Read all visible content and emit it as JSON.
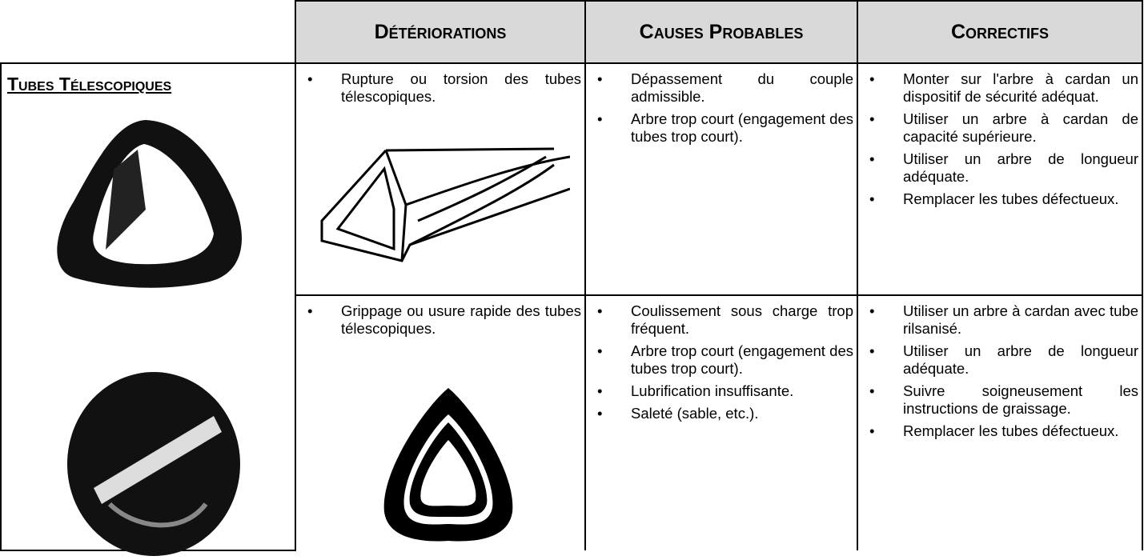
{
  "header": {
    "columns": [
      "Détériorations",
      "Causes Probables",
      "Correctifs"
    ]
  },
  "section": {
    "title": "Tubes Télescopiques"
  },
  "rows": [
    {
      "deteriorations": [
        "Rupture ou torsion des tubes télescopiques."
      ],
      "causes": [
        "Dépassement du couple admissible.",
        "Arbre trop court (engagement des tubes trop court)."
      ],
      "correctifs": [
        "Monter sur l'arbre à cardan un dispositif de sécurité adéquat.",
        "Utiliser un arbre à cardan de capacité supérieure.",
        "Utiliser un arbre de longueur adéquate.",
        "Remplacer les tubes défectueux."
      ]
    },
    {
      "deteriorations": [
        "Grippage ou usure rapide des tubes télescopiques."
      ],
      "causes": [
        "Coulissement sous charge trop fréquent.",
        "Arbre trop court (engagement des tubes trop court).",
        "Lubrification insuffisante.",
        "Saleté (sable, etc.)."
      ],
      "correctifs": [
        "Utiliser un arbre à cardan avec tube rilsanisé.",
        "Utiliser un arbre de longueur adéquate.",
        "Suivre soigneusement les instructions de graissage.",
        "Remplacer les tubes défectueux."
      ]
    }
  ]
}
